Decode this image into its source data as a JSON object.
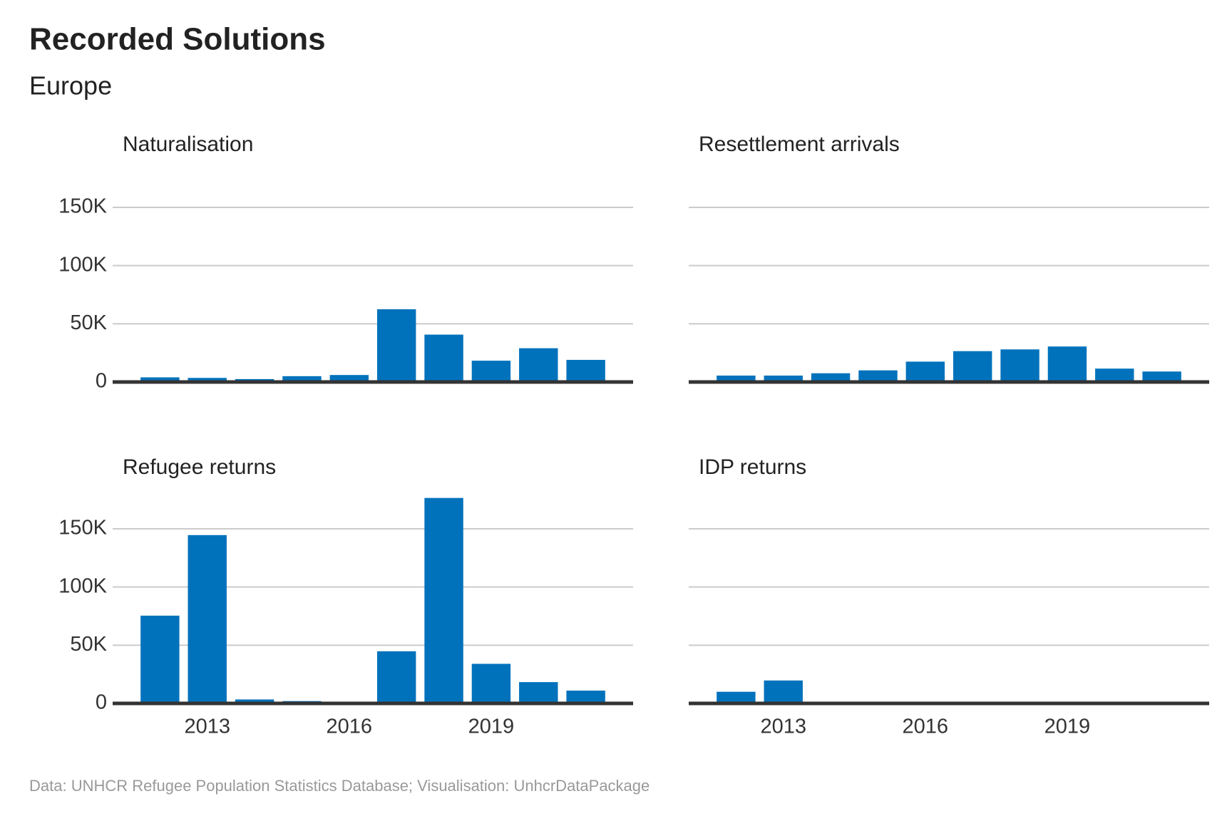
{
  "title": "Recorded Solutions",
  "subtitle": "Europe",
  "caption": "Data: UNHCR Refugee Population Statistics Database; Visualisation: UnhcrDataPackage",
  "chart_data": [
    {
      "type": "bar",
      "title": "Naturalisation",
      "color": "#0072bc",
      "x": [
        2012,
        2013,
        2014,
        2015,
        2016,
        2017,
        2018,
        2019,
        2020,
        2021
      ],
      "values": [
        4000,
        3500,
        2500,
        5000,
        6000,
        62500,
        40700,
        18300,
        29000,
        19000
      ],
      "xlim": [
        2011,
        2022
      ],
      "ylim": [
        0,
        180000
      ],
      "yticks": [
        0,
        {
          "value": 50000,
          "label": "50K"
        },
        {
          "value": 100000,
          "label": "100K"
        },
        {
          "value": 150000,
          "label": "150K"
        }
      ],
      "grid": true
    },
    {
      "type": "bar",
      "title": "Resettlement arrivals",
      "color": "#0072bc",
      "x": [
        2012,
        2013,
        2014,
        2015,
        2016,
        2017,
        2018,
        2019,
        2020,
        2021
      ],
      "values": [
        5500,
        5500,
        7500,
        10000,
        17500,
        26500,
        28000,
        30500,
        11500,
        9000
      ],
      "xlim": [
        2011,
        2022
      ],
      "ylim": [
        0,
        180000
      ],
      "yticks": [
        0,
        50000,
        100000,
        150000
      ],
      "ytick_labels": false,
      "grid": true
    },
    {
      "type": "bar",
      "title": "Refugee returns",
      "color": "#0072bc",
      "x": [
        2012,
        2013,
        2014,
        2015,
        2016,
        2017,
        2018,
        2019,
        2020,
        2021
      ],
      "values": [
        75400,
        144600,
        3400,
        2000,
        0,
        44800,
        176500,
        34000,
        18300,
        11000
      ],
      "xlim": [
        2011,
        2022
      ],
      "ylim": [
        0,
        180000
      ],
      "xticks": [
        2013,
        2016,
        2019
      ],
      "yticks": [
        0,
        {
          "value": 50000,
          "label": "50K"
        },
        {
          "value": 100000,
          "label": "100K"
        },
        {
          "value": 150000,
          "label": "150K"
        }
      ],
      "grid": true
    },
    {
      "type": "bar",
      "title": "IDP returns",
      "color": "#0072bc",
      "x": [
        2012,
        2013,
        2014,
        2015,
        2016,
        2017,
        2018,
        2019,
        2020,
        2021
      ],
      "values": [
        10000,
        19700,
        0,
        0,
        0,
        0,
        0,
        0,
        0,
        0
      ],
      "xlim": [
        2011,
        2022
      ],
      "ylim": [
        0,
        180000
      ],
      "xticks": [
        2013,
        2016,
        2019
      ],
      "yticks": [
        0,
        50000,
        100000,
        150000
      ],
      "ytick_labels": false,
      "grid": true
    }
  ]
}
